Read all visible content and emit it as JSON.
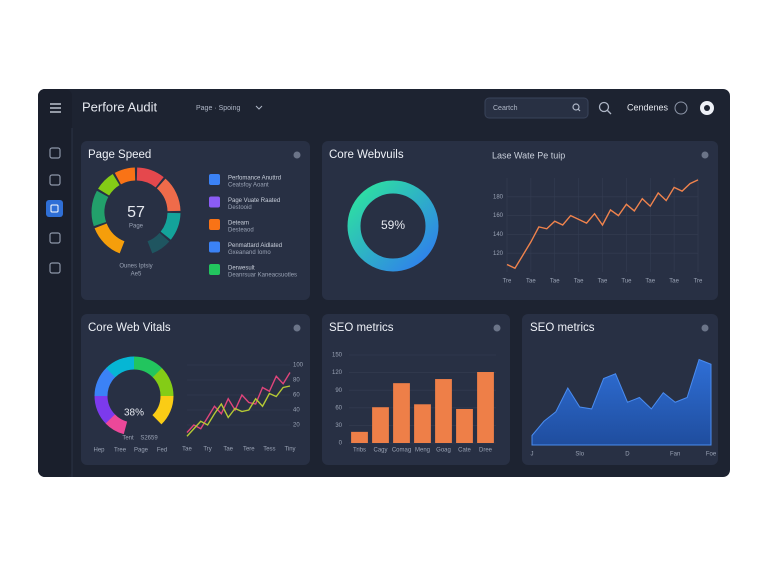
{
  "header": {
    "title": "Perfore Audit",
    "nav": "Page · Spoing",
    "search": "Ceartch",
    "user": "Cendenes"
  },
  "page_speed": {
    "title": "Page Speed",
    "score": "57",
    "score_sub": "Page",
    "caption": "Ounes Iptsiy",
    "caption2": "Ae5",
    "segments": [
      {
        "color": "#f59e0b",
        "value": 50
      },
      {
        "color": "#22a06b",
        "value": 50
      },
      {
        "color": "#84cc16",
        "value": 30
      },
      {
        "color": "#f97316",
        "value": 30
      },
      {
        "color": "#e5484d",
        "value": 40
      },
      {
        "color": "#ef6b4a",
        "value": 50
      },
      {
        "color": "#14a39a",
        "value": 40
      },
      {
        "color": "#1f5560",
        "value": 30
      }
    ],
    "legend": [
      {
        "label": "Perfomance Anuttrd",
        "sub": "Ceatsfoy Aoant",
        "color": "#3b82f6"
      },
      {
        "label": "Page Vuate Raated",
        "sub": "Destooid",
        "color": "#8b5cf6"
      },
      {
        "label": "Deteam",
        "sub": "Desteaod",
        "color": "#f97316"
      },
      {
        "label": "Penmattard Aidlated",
        "sub": "Gxeanand Iomo",
        "color": "#3b82f6"
      },
      {
        "label": "Derwesult",
        "sub": "Deanrsuar Kaneacsuotles",
        "color": "#22c55e"
      }
    ]
  },
  "core_webvitals_top": {
    "title": "Core Webvuils",
    "donut_label": "59%",
    "chart": {
      "type": "line",
      "title": "Lase Wate Pe tuip",
      "color": "#f0834d",
      "ylim": [
        100,
        200
      ],
      "yticks": [
        120,
        140,
        160,
        180
      ],
      "categories": [
        "Tre",
        null,
        null,
        "Tae",
        null,
        null,
        "Tae",
        null,
        null,
        "Tae",
        null,
        null,
        "Tae",
        null,
        null,
        "Tue",
        null,
        null,
        "Tae",
        null,
        null,
        "Tae",
        null,
        null,
        "Tre"
      ],
      "values": [
        108,
        104,
        118,
        132,
        148,
        146,
        154,
        150,
        160,
        156,
        152,
        162,
        150,
        166,
        160,
        172,
        165,
        178,
        170,
        184,
        176,
        190,
        186,
        194,
        198
      ]
    }
  },
  "core_web_vitals": {
    "title": "Core Web Vitals",
    "gauge_label": "38%",
    "caption": "Tent",
    "caption2": "S2659",
    "gauge_categories": [
      "Hep",
      "Tree",
      "Page",
      "Fed"
    ],
    "chart": {
      "type": "line",
      "ylim": [
        0,
        100
      ],
      "yticks": [
        20,
        40,
        60,
        80,
        100
      ],
      "categories": [
        "Tae",
        null,
        null,
        "Try",
        null,
        null,
        "Tae",
        null,
        null,
        "Tere",
        null,
        null,
        "Tess",
        null,
        null,
        "Tiny"
      ],
      "series": [
        {
          "color": "#e0457b",
          "values": [
            10,
            20,
            15,
            30,
            45,
            35,
            55,
            40,
            60,
            50,
            48,
            70,
            65,
            85,
            75,
            90
          ]
        },
        {
          "color": "#b5c934",
          "values": [
            5,
            15,
            25,
            20,
            35,
            48,
            30,
            42,
            38,
            40,
            55,
            45,
            62,
            58,
            70,
            72
          ]
        }
      ]
    }
  },
  "seo_bars": {
    "type": "bar",
    "title": "SEO metrics",
    "color": "#ee7f48",
    "ylim": [
      0,
      150
    ],
    "yticks": [
      0,
      30,
      60,
      90,
      120,
      150
    ],
    "categories": [
      "Tribs",
      "Cagy",
      "Comag",
      "Meng",
      "Goag",
      "Cate",
      "Dree"
    ],
    "values": [
      19,
      61,
      102,
      66,
      109,
      58,
      121
    ]
  },
  "seo_area": {
    "type": "area",
    "title": "SEO metrics",
    "color": "#2f6fd6",
    "ylim": [
      0,
      100
    ],
    "categories": [
      "J",
      null,
      null,
      null,
      "Slo",
      null,
      null,
      null,
      "D",
      null,
      null,
      null,
      "Fan",
      null,
      null,
      "Foe"
    ],
    "values": [
      10,
      25,
      35,
      60,
      40,
      38,
      70,
      75,
      45,
      50,
      38,
      55,
      45,
      50,
      90,
      85
    ]
  }
}
